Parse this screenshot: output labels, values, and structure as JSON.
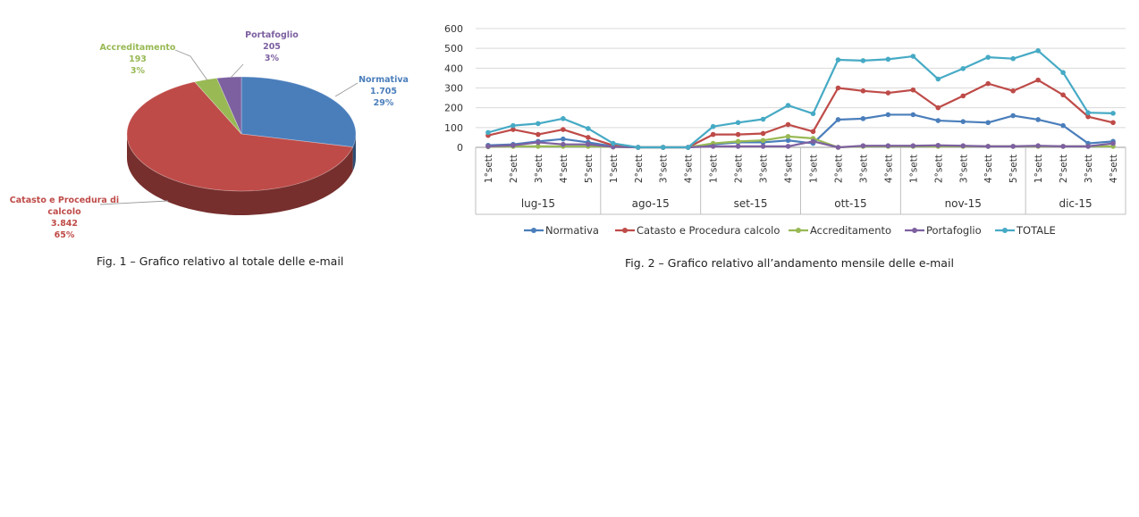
{
  "colors": {
    "Normativa": "#4a7ebb",
    "Catasto e Procedura calcolo": "#be4b48",
    "Accreditamento": "#98b954",
    "Portafoglio": "#7d60a0",
    "TOTALE": "#46aac5"
  },
  "chart_data": [
    {
      "type": "pie",
      "slices": [
        {
          "label": "Normativa",
          "value_text": "1.705",
          "percent_text": "29%",
          "value": 1705,
          "percent": 29
        },
        {
          "label": "Catasto e Procedura di calcolo",
          "label_lines": [
            "Catasto e Procedura di",
            "calcolo"
          ],
          "value_text": "3.842",
          "percent_text": "65%",
          "value": 3842,
          "percent": 65
        },
        {
          "label": "Accreditamento",
          "value_text": "193",
          "percent_text": "3%",
          "value": 193,
          "percent": 3
        },
        {
          "label": "Portafoglio",
          "value_text": "205",
          "percent_text": "3%",
          "value": 205,
          "percent": 3
        }
      ],
      "caption": "Fig. 1 – Grafico relativo al totale delle e-mail"
    },
    {
      "type": "line",
      "categories": [
        "1°sett",
        "2°sett",
        "3°sett",
        "4°sett",
        "5°sett",
        "1°sett",
        "2°sett",
        "3°sett",
        "4°sett",
        "1°sett",
        "2°sett",
        "3°sett",
        "4°sett",
        "1°sett",
        "2°sett",
        "3°sett",
        "4°sett",
        "1°sett",
        "2°sett",
        "3°sett",
        "4°sett",
        "5°sett",
        "1°sett",
        "2°sett",
        "3°sett",
        "4°sett"
      ],
      "groups": [
        {
          "label": "lug-15",
          "count": 5
        },
        {
          "label": "ago-15",
          "count": 4
        },
        {
          "label": "set-15",
          "count": 4
        },
        {
          "label": "ott-15",
          "count": 4
        },
        {
          "label": "nov-15",
          "count": 5
        },
        {
          "label": "dic-15",
          "count": 4
        }
      ],
      "ylim": [
        0,
        600
      ],
      "yticks": [
        0,
        100,
        200,
        300,
        400,
        500,
        600
      ],
      "grid": true,
      "legend_position": "bottom",
      "series": [
        {
          "name": "Normativa",
          "values": [
            10,
            15,
            30,
            42,
            25,
            5,
            0,
            0,
            0,
            15,
            25,
            25,
            35,
            20,
            140,
            145,
            165,
            165,
            135,
            130,
            125,
            160,
            140,
            110,
            20,
            30
          ]
        },
        {
          "name": "Catasto e Procedura calcolo",
          "values": [
            60,
            90,
            65,
            90,
            50,
            10,
            0,
            0,
            0,
            65,
            65,
            70,
            115,
            80,
            300,
            285,
            275,
            290,
            200,
            260,
            322,
            285,
            340,
            265,
            155,
            125
          ]
        },
        {
          "name": "Accreditamento",
          "values": [
            3,
            5,
            5,
            5,
            5,
            2,
            0,
            0,
            0,
            20,
            30,
            35,
            55,
            45,
            0,
            5,
            5,
            5,
            5,
            5,
            5,
            5,
            5,
            5,
            5,
            5
          ]
        },
        {
          "name": "Portafoglio",
          "values": [
            5,
            10,
            25,
            15,
            15,
            2,
            0,
            0,
            0,
            5,
            5,
            5,
            5,
            30,
            0,
            8,
            8,
            8,
            10,
            8,
            5,
            5,
            8,
            5,
            5,
            20
          ]
        },
        {
          "name": "TOTALE",
          "values": [
            75,
            110,
            120,
            145,
            95,
            20,
            0,
            0,
            0,
            105,
            125,
            142,
            212,
            170,
            442,
            438,
            445,
            460,
            345,
            398,
            455,
            448,
            488,
            378,
            175,
            172
          ]
        }
      ],
      "caption": "Fig. 2 – Grafico relativo all’andamento mensile delle e-mail"
    }
  ]
}
